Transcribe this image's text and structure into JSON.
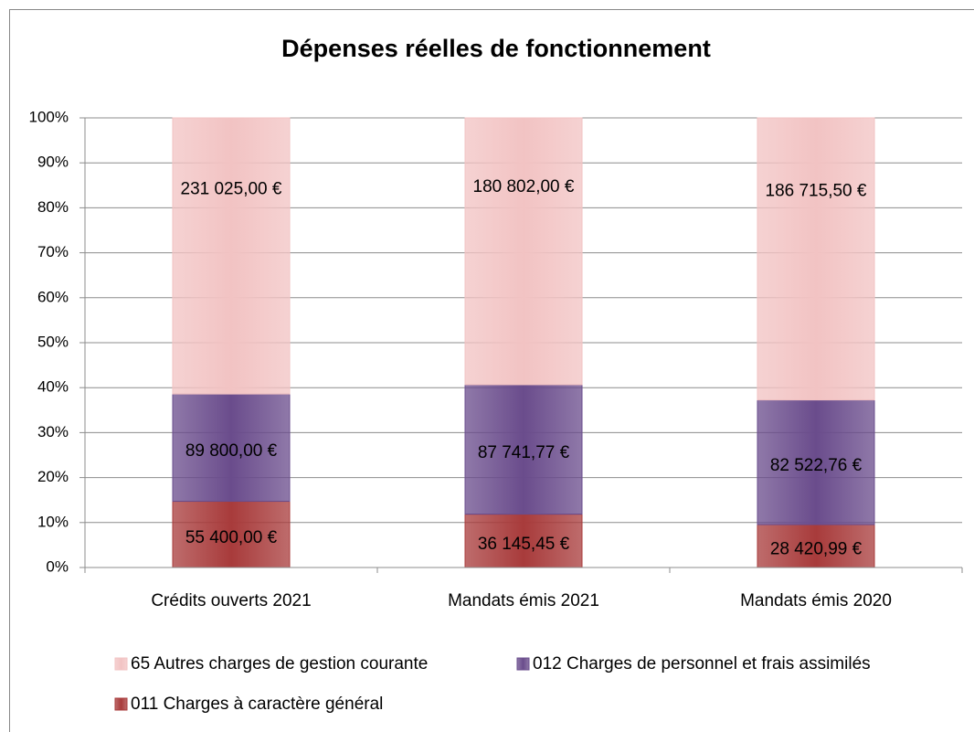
{
  "chart_data": {
    "type": "bar",
    "stacking": "percent",
    "title": "Dépenses réelles de fonctionnement",
    "categories": [
      "Crédits ouverts 2021",
      "Mandats émis 2021",
      "Mandats émis 2020"
    ],
    "series": [
      {
        "name": "011 Charges à caractère général",
        "color": "#a83b3b",
        "values": [
          55400,
          36145.45,
          28420.99
        ],
        "value_labels": [
          "55 400,00 €",
          "36 145,45 €",
          "28 420,99 €"
        ]
      },
      {
        "name": "012 Charges de personnel et frais assimilés",
        "color": "#6a4c8c",
        "values": [
          89800,
          87741.77,
          82522.76
        ],
        "value_labels": [
          "89 800,00 €",
          "87 741,77 €",
          "82 522,76 €"
        ]
      },
      {
        "name": "65 Autres charges de gestion courante",
        "color": "#f2c3c3",
        "values": [
          231025,
          180802,
          186715.5
        ],
        "value_labels": [
          "231 025,00 €",
          "180 802,00 €",
          "186 715,50 €"
        ]
      }
    ],
    "ylim": [
      0,
      100
    ],
    "yticks": [
      {
        "value": 0,
        "label": "0%"
      },
      {
        "value": 10,
        "label": "10%"
      },
      {
        "value": 20,
        "label": "20%"
      },
      {
        "value": 30,
        "label": "30%"
      },
      {
        "value": 40,
        "label": "40%"
      },
      {
        "value": 50,
        "label": "50%"
      },
      {
        "value": 60,
        "label": "60%"
      },
      {
        "value": 70,
        "label": "70%"
      },
      {
        "value": 80,
        "label": "80%"
      },
      {
        "value": 90,
        "label": "90%"
      },
      {
        "value": 100,
        "label": "100%"
      }
    ],
    "grid": true,
    "legend": "bottom"
  }
}
